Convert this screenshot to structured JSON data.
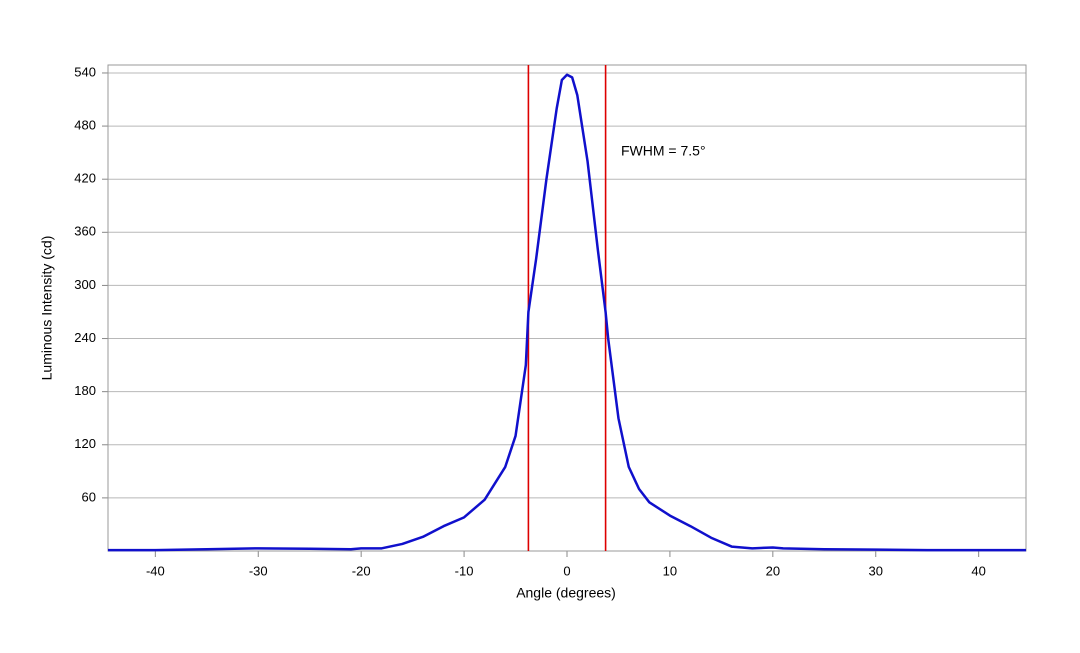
{
  "chart_data": {
    "type": "line",
    "x_label": "Angle (degrees)",
    "y_label": "Luminous Intensity (cd)",
    "annotation": "FWHM = 7.5°",
    "x": [
      -44.6,
      -40,
      -35,
      -30,
      -25,
      -21,
      -20,
      -18,
      -16,
      -14,
      -12,
      -10,
      -8,
      -6,
      -5,
      -4,
      -3.75,
      -3,
      -2,
      -1,
      -0.5,
      0,
      0.5,
      1,
      2,
      3,
      3.75,
      4,
      5,
      6,
      7,
      8,
      10,
      12,
      14,
      16,
      18,
      20,
      21,
      25,
      30,
      35,
      40,
      44.6
    ],
    "values": [
      1,
      1,
      2,
      3,
      2.5,
      2,
      3,
      3,
      8,
      16,
      28,
      38,
      58,
      95,
      130,
      210,
      270,
      330,
      420,
      500,
      532,
      538,
      535,
      515,
      440,
      340,
      270,
      240,
      150,
      95,
      70,
      55,
      40,
      28,
      15,
      5,
      3,
      4,
      3,
      2,
      1.5,
      1,
      1,
      1
    ],
    "color": "#1010cc",
    "vlines": [
      -3.75,
      3.75
    ],
    "vline_color": "#dd0000",
    "xlim": [
      -44.6,
      44.6
    ],
    "ylim": [
      0,
      549
    ],
    "xticks": [
      -40,
      -30,
      -20,
      -10,
      0,
      10,
      20,
      30,
      40
    ],
    "yticks": [
      60,
      120,
      180,
      240,
      300,
      360,
      420,
      480,
      540
    ],
    "grid": true
  }
}
